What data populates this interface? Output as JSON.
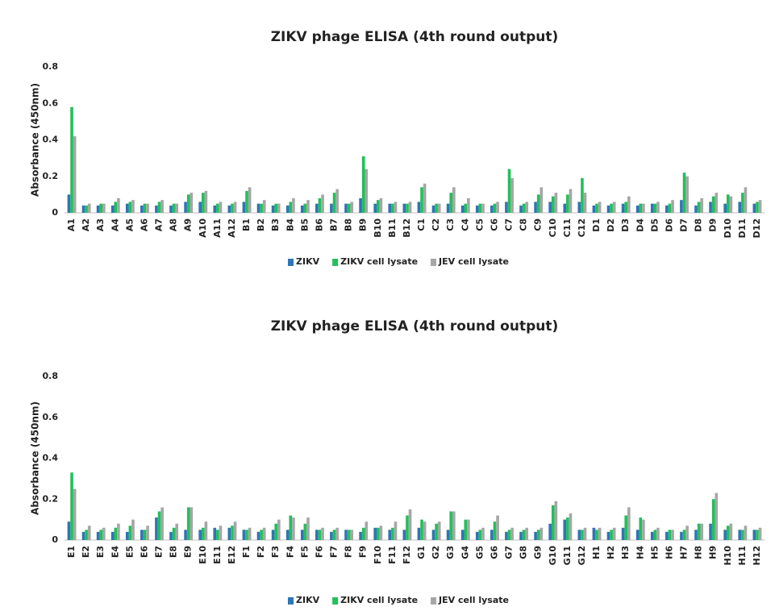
{
  "chart_data": [
    {
      "type": "bar",
      "title": "ZIKV phage ELISA (4th round output)",
      "y_label": "Absorbance (450nm)",
      "categories": [
        "A1",
        "A2",
        "A3",
        "A4",
        "A5",
        "A6",
        "A7",
        "A8",
        "A9",
        "A10",
        "A11",
        "A12",
        "B1",
        "B2",
        "B3",
        "B4",
        "B5",
        "B6",
        "B7",
        "B8",
        "B9",
        "B10",
        "B11",
        "B12",
        "C1",
        "C2",
        "C3",
        "C4",
        "C5",
        "C6",
        "C7",
        "C8",
        "C9",
        "C10",
        "C11",
        "C12",
        "D1",
        "D2",
        "D3",
        "D4",
        "D5",
        "D6",
        "D7",
        "D8",
        "D9",
        "D10",
        "D11",
        "D12"
      ],
      "series": [
        {
          "name": "ZIKV",
          "color": "#2e75b6",
          "values": [
            0.1,
            0.04,
            0.04,
            0.04,
            0.05,
            0.04,
            0.04,
            0.04,
            0.06,
            0.06,
            0.04,
            0.04,
            0.06,
            0.05,
            0.04,
            0.04,
            0.04,
            0.05,
            0.05,
            0.05,
            0.08,
            0.05,
            0.05,
            0.05,
            0.06,
            0.04,
            0.05,
            0.04,
            0.04,
            0.04,
            0.06,
            0.04,
            0.06,
            0.06,
            0.05,
            0.06,
            0.04,
            0.04,
            0.05,
            0.04,
            0.05,
            0.04,
            0.07,
            0.04,
            0.06,
            0.05,
            0.06,
            0.05
          ]
        },
        {
          "name": "ZIKV cell lysate",
          "color": "#22c05a",
          "values": [
            0.58,
            0.04,
            0.05,
            0.06,
            0.06,
            0.05,
            0.06,
            0.05,
            0.1,
            0.11,
            0.05,
            0.05,
            0.12,
            0.05,
            0.05,
            0.06,
            0.05,
            0.08,
            0.11,
            0.05,
            0.31,
            0.07,
            0.05,
            0.05,
            0.14,
            0.05,
            0.11,
            0.05,
            0.05,
            0.05,
            0.24,
            0.05,
            0.1,
            0.09,
            0.1,
            0.19,
            0.05,
            0.05,
            0.06,
            0.05,
            0.05,
            0.05,
            0.22,
            0.06,
            0.09,
            0.1,
            0.11,
            0.06
          ]
        },
        {
          "name": "JEV cell lysate",
          "color": "#a6a6a6",
          "values": [
            0.42,
            0.05,
            0.05,
            0.08,
            0.07,
            0.05,
            0.07,
            0.05,
            0.11,
            0.12,
            0.06,
            0.06,
            0.14,
            0.07,
            0.05,
            0.08,
            0.07,
            0.1,
            0.13,
            0.06,
            0.24,
            0.08,
            0.06,
            0.06,
            0.16,
            0.05,
            0.14,
            0.08,
            0.05,
            0.06,
            0.19,
            0.06,
            0.14,
            0.11,
            0.13,
            0.11,
            0.06,
            0.06,
            0.09,
            0.05,
            0.06,
            0.07,
            0.2,
            0.08,
            0.11,
            0.09,
            0.14,
            0.07
          ]
        }
      ],
      "ylim": [
        0,
        0.8
      ],
      "yticks": [
        0,
        0.2,
        0.4,
        0.6,
        0.8
      ],
      "grid": false,
      "legend": "bottom"
    },
    {
      "type": "bar",
      "title": "ZIKV phage ELISA (4th round output)",
      "y_label": "Absorbance (450nm)",
      "categories": [
        "E1",
        "E2",
        "E3",
        "E4",
        "E5",
        "E6",
        "E7",
        "E8",
        "E9",
        "E10",
        "E11",
        "E12",
        "F1",
        "F2",
        "F3",
        "F4",
        "F5",
        "F6",
        "F7",
        "F8",
        "F9",
        "F10",
        "F11",
        "F12",
        "G1",
        "G2",
        "G3",
        "G4",
        "G5",
        "G6",
        "G7",
        "G8",
        "G9",
        "G10",
        "G11",
        "G12",
        "H1",
        "H2",
        "H3",
        "H4",
        "H5",
        "H6",
        "H7",
        "H8",
        "H9",
        "H10",
        "H11",
        "H12"
      ],
      "series": [
        {
          "name": "ZIKV",
          "color": "#2e75b6",
          "values": [
            0.09,
            0.04,
            0.04,
            0.04,
            0.04,
            0.05,
            0.11,
            0.04,
            0.05,
            0.05,
            0.06,
            0.06,
            0.05,
            0.04,
            0.05,
            0.05,
            0.05,
            0.05,
            0.04,
            0.05,
            0.04,
            0.06,
            0.05,
            0.05,
            0.06,
            0.05,
            0.05,
            0.05,
            0.04,
            0.05,
            0.04,
            0.04,
            0.04,
            0.08,
            0.1,
            0.05,
            0.06,
            0.04,
            0.06,
            0.05,
            0.04,
            0.04,
            0.04,
            0.05,
            0.08,
            0.05,
            0.05,
            0.05
          ]
        },
        {
          "name": "ZIKV cell lysate",
          "color": "#22c05a",
          "values": [
            0.33,
            0.05,
            0.05,
            0.06,
            0.07,
            0.05,
            0.14,
            0.06,
            0.16,
            0.06,
            0.05,
            0.07,
            0.05,
            0.05,
            0.08,
            0.12,
            0.08,
            0.05,
            0.05,
            0.05,
            0.06,
            0.06,
            0.06,
            0.12,
            0.1,
            0.08,
            0.14,
            0.1,
            0.05,
            0.09,
            0.05,
            0.05,
            0.05,
            0.17,
            0.11,
            0.05,
            0.05,
            0.05,
            0.12,
            0.11,
            0.05,
            0.05,
            0.05,
            0.08,
            0.2,
            0.07,
            0.05,
            0.05
          ]
        },
        {
          "name": "JEV cell lysate",
          "color": "#a6a6a6",
          "values": [
            0.25,
            0.07,
            0.06,
            0.08,
            0.1,
            0.07,
            0.16,
            0.08,
            0.16,
            0.09,
            0.07,
            0.09,
            0.06,
            0.06,
            0.1,
            0.11,
            0.11,
            0.06,
            0.06,
            0.05,
            0.09,
            0.07,
            0.09,
            0.15,
            0.09,
            0.09,
            0.14,
            0.1,
            0.06,
            0.12,
            0.06,
            0.06,
            0.06,
            0.19,
            0.13,
            0.06,
            0.06,
            0.06,
            0.16,
            0.1,
            0.06,
            0.05,
            0.07,
            0.08,
            0.23,
            0.08,
            0.07,
            0.06
          ]
        }
      ],
      "ylim": [
        0,
        0.8
      ],
      "yticks": [
        0,
        0.2,
        0.4,
        0.6,
        0.8
      ],
      "grid": false,
      "legend": "bottom"
    }
  ]
}
